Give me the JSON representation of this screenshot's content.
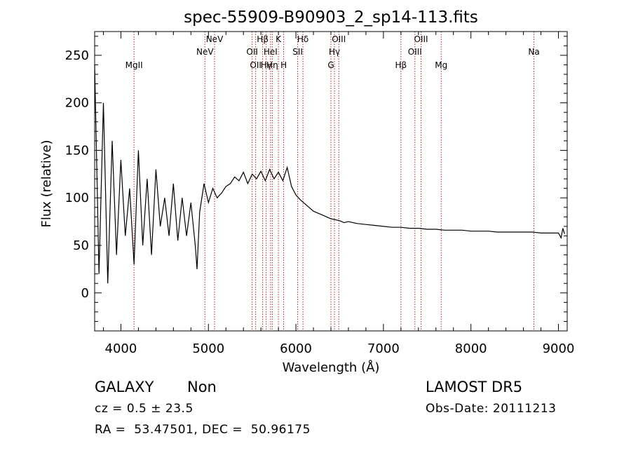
{
  "chart_data": {
    "type": "line",
    "title": "spec-55909-B90903_2_sp14-113.fits",
    "xlabel": "Wavelength (Å)",
    "ylabel": "Flux (relative)",
    "xlim": [
      3700,
      9100
    ],
    "ylim": [
      -40,
      275
    ],
    "xticks": [
      4000,
      5000,
      6000,
      7000,
      8000,
      9000
    ],
    "yticks": [
      0,
      50,
      100,
      150,
      200,
      250
    ],
    "grid": false,
    "line_color": "#000000",
    "marker_line_color": "#b22222",
    "series": [
      {
        "x": [
          3700,
          3750,
          3800,
          3850,
          3900,
          3950,
          4000,
          4050,
          4100,
          4150,
          4200,
          4250,
          4300,
          4350,
          4400,
          4450,
          4500,
          4550,
          4600,
          4650,
          4700,
          4750,
          4800,
          4850,
          4870,
          4900,
          4950,
          5000,
          5050,
          5100,
          5150,
          5200,
          5250,
          5300,
          5350,
          5400,
          5450,
          5500,
          5550,
          5600,
          5650,
          5700,
          5750,
          5800,
          5850,
          5900,
          5950,
          6000,
          6050,
          6100,
          6150,
          6200,
          6250,
          6300,
          6350,
          6400,
          6450,
          6500,
          6550,
          6600,
          6700,
          6800,
          6900,
          7000,
          7100,
          7200,
          7300,
          7400,
          7500,
          7600,
          7700,
          7800,
          7900,
          8000,
          8100,
          8200,
          8300,
          8400,
          8500,
          8600,
          8700,
          8800,
          8900,
          9000,
          9030,
          9050,
          9070
        ],
        "y": [
          240,
          20,
          200,
          10,
          160,
          40,
          140,
          60,
          110,
          30,
          150,
          50,
          120,
          40,
          130,
          70,
          100,
          60,
          115,
          55,
          100,
          60,
          95,
          50,
          25,
          85,
          115,
          95,
          110,
          100,
          105,
          112,
          115,
          122,
          118,
          127,
          115,
          125,
          120,
          128,
          118,
          130,
          120,
          127,
          118,
          132,
          112,
          103,
          98,
          94,
          90,
          86,
          84,
          82,
          80,
          78,
          77,
          76,
          74,
          75,
          73,
          72,
          71,
          70,
          69,
          69,
          68,
          68,
          67,
          67,
          66,
          66,
          66,
          65,
          65,
          65,
          64,
          64,
          64,
          64,
          64,
          63,
          63,
          63,
          58,
          68,
          62
        ]
      }
    ],
    "lines": [
      {
        "x": 4150,
        "label": "MgII",
        "row": 3
      },
      {
        "x": 4960,
        "label": "NeV",
        "row": 2
      },
      {
        "x": 5070,
        "label": "NeV",
        "row": 1
      },
      {
        "x": 5500,
        "label": "OII",
        "row": 2
      },
      {
        "x": 5540,
        "label": "OII",
        "row": 3
      },
      {
        "x": 5620,
        "label": "Hβ",
        "row": 1
      },
      {
        "x": 5660,
        "label": "Hγ",
        "row": 3
      },
      {
        "x": 5710,
        "label": "HeI",
        "row": 2
      },
      {
        "x": 5730,
        "label": "Hη",
        "row": 3
      },
      {
        "x": 5800,
        "label": "K",
        "row": 1
      },
      {
        "x": 5860,
        "label": "H",
        "row": 3
      },
      {
        "x": 6020,
        "label": "SII",
        "row": 2
      },
      {
        "x": 6080,
        "label": "Hδ",
        "row": 1
      },
      {
        "x": 6400,
        "label": "G",
        "row": 3
      },
      {
        "x": 6440,
        "label": "Hγ",
        "row": 2
      },
      {
        "x": 6490,
        "label": "OIII",
        "row": 1
      },
      {
        "x": 7200,
        "label": "Hβ",
        "row": 3
      },
      {
        "x": 7360,
        "label": "OIII",
        "row": 2
      },
      {
        "x": 7430,
        "label": "OIII",
        "row": 1
      },
      {
        "x": 7660,
        "label": "Mg",
        "row": 3
      },
      {
        "x": 8720,
        "label": "Na",
        "row": 2
      }
    ]
  },
  "info": {
    "class": "GALAXY",
    "subclass": "Non",
    "survey": "LAMOST DR5",
    "cz": "cz = 0.5 ± 23.5",
    "obs_date": "Obs-Date: 20111213",
    "coords": "RA =  53.47501, DEC =  50.96175"
  }
}
